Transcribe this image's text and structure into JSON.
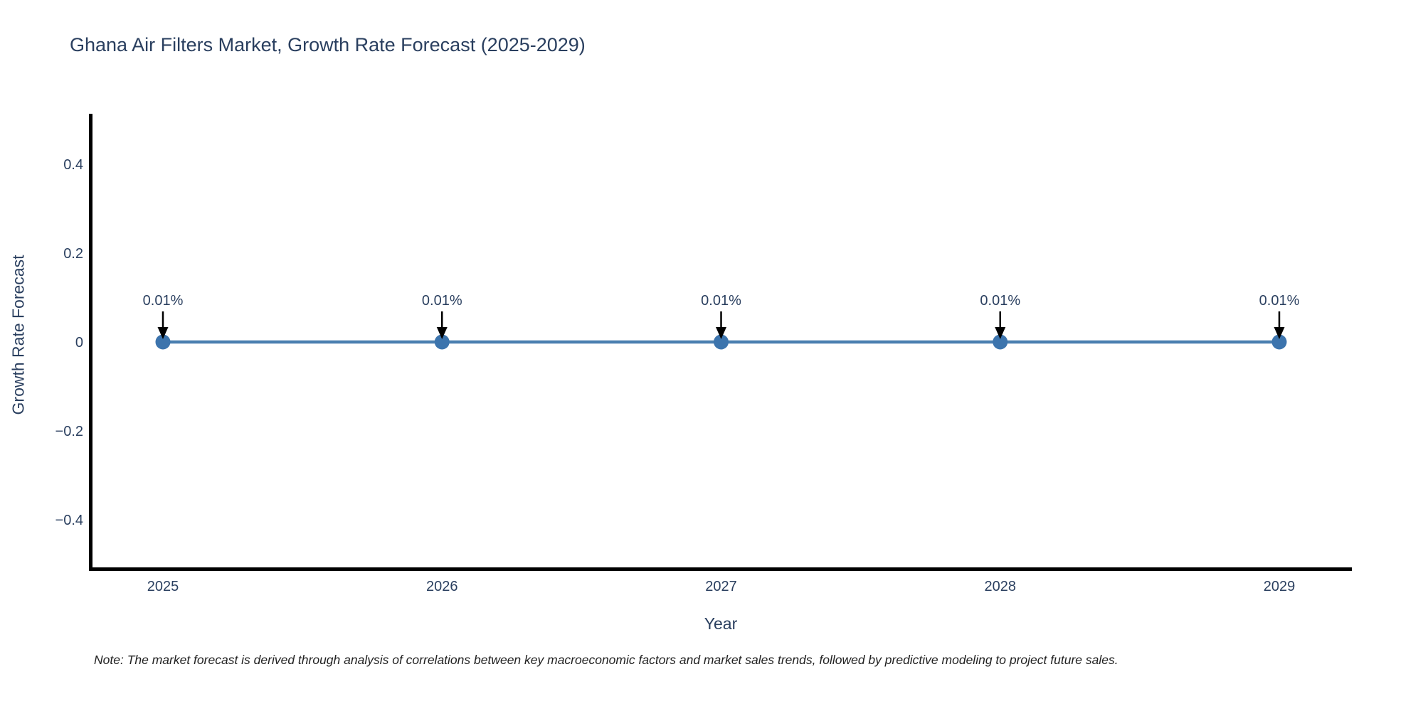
{
  "chart": {
    "title": "Ghana Air Filters Market, Growth Rate Forecast (2025-2029)",
    "yaxis_label": "Growth Rate Forecast",
    "xaxis_label": "Year",
    "note": "Note: The market forecast is derived through analysis of correlations between key macroeconomic factors and market sales trends, followed by predictive modeling to project future sales."
  },
  "chart_data": {
    "type": "line",
    "title": "Ghana Air Filters Market, Growth Rate Forecast (2025-2029)",
    "xlabel": "Year",
    "ylabel": "Growth Rate Forecast",
    "x": [
      2025,
      2026,
      2027,
      2028,
      2029
    ],
    "y_percent": [
      0.01,
      0.01,
      0.01,
      0.01,
      0.01
    ],
    "point_labels": [
      "0.01%",
      "0.01%",
      "0.01%",
      "0.01%",
      "0.01%"
    ],
    "xtick_labels": [
      "2025",
      "2026",
      "2027",
      "2028",
      "2029"
    ],
    "ytick_values": [
      0.4,
      0.2,
      0,
      -0.2,
      -0.4
    ],
    "ytick_labels": [
      "0.4",
      "0.2",
      "0",
      "−0.2",
      "−0.4"
    ],
    "ylim": [
      -0.51,
      0.51
    ],
    "grid": false,
    "legend_position": "none",
    "colors": {
      "line": "#4a7fb0",
      "marker": "#3c74ad",
      "axis_line": "#000000",
      "chart_text": "#2a3f5f",
      "note_text": "#222222",
      "arrow": "#000000",
      "background": "#ffffff"
    }
  }
}
